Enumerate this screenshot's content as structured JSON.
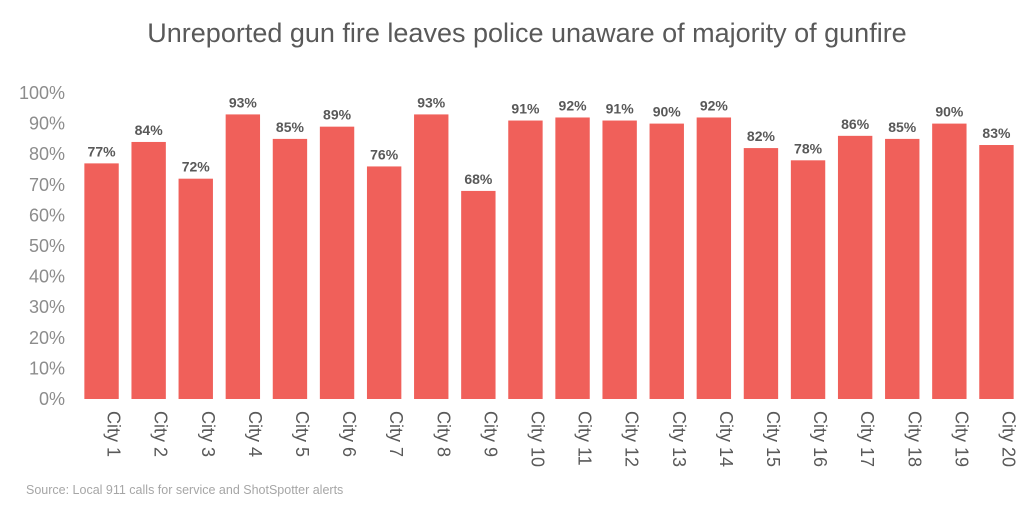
{
  "chart_data": {
    "type": "bar",
    "title": "Unreported gun fire leaves police unaware of majority of gunfire",
    "xlabel": "",
    "ylabel": "",
    "ylim": [
      0,
      100
    ],
    "yticks": [
      "0%",
      "10%",
      "20%",
      "30%",
      "40%",
      "50%",
      "60%",
      "70%",
      "80%",
      "90%",
      "100%"
    ],
    "categories": [
      "City 1",
      "City 2",
      "City 3",
      "City 4",
      "City 5",
      "City 6",
      "City 7",
      "City 8",
      "City 9",
      "City 10",
      "City 11",
      "City 12",
      "City 13",
      "City 14",
      "City 15",
      "City 16",
      "City 17",
      "City 18",
      "City 19",
      "City 20"
    ],
    "values": [
      77,
      84,
      72,
      93,
      85,
      89,
      76,
      93,
      68,
      91,
      92,
      91,
      90,
      92,
      82,
      78,
      86,
      85,
      90,
      83
    ],
    "data_labels": [
      "77%",
      "84%",
      "72%",
      "93%",
      "85%",
      "89%",
      "76%",
      "93%",
      "68%",
      "91%",
      "92%",
      "91%",
      "90%",
      "92%",
      "82%",
      "78%",
      "86%",
      "85%",
      "90%",
      "83%"
    ],
    "grid": false,
    "legend": "none",
    "bar_color": "#f0605a",
    "source": "Source: Local 911 calls for service and ShotSpotter alerts"
  }
}
